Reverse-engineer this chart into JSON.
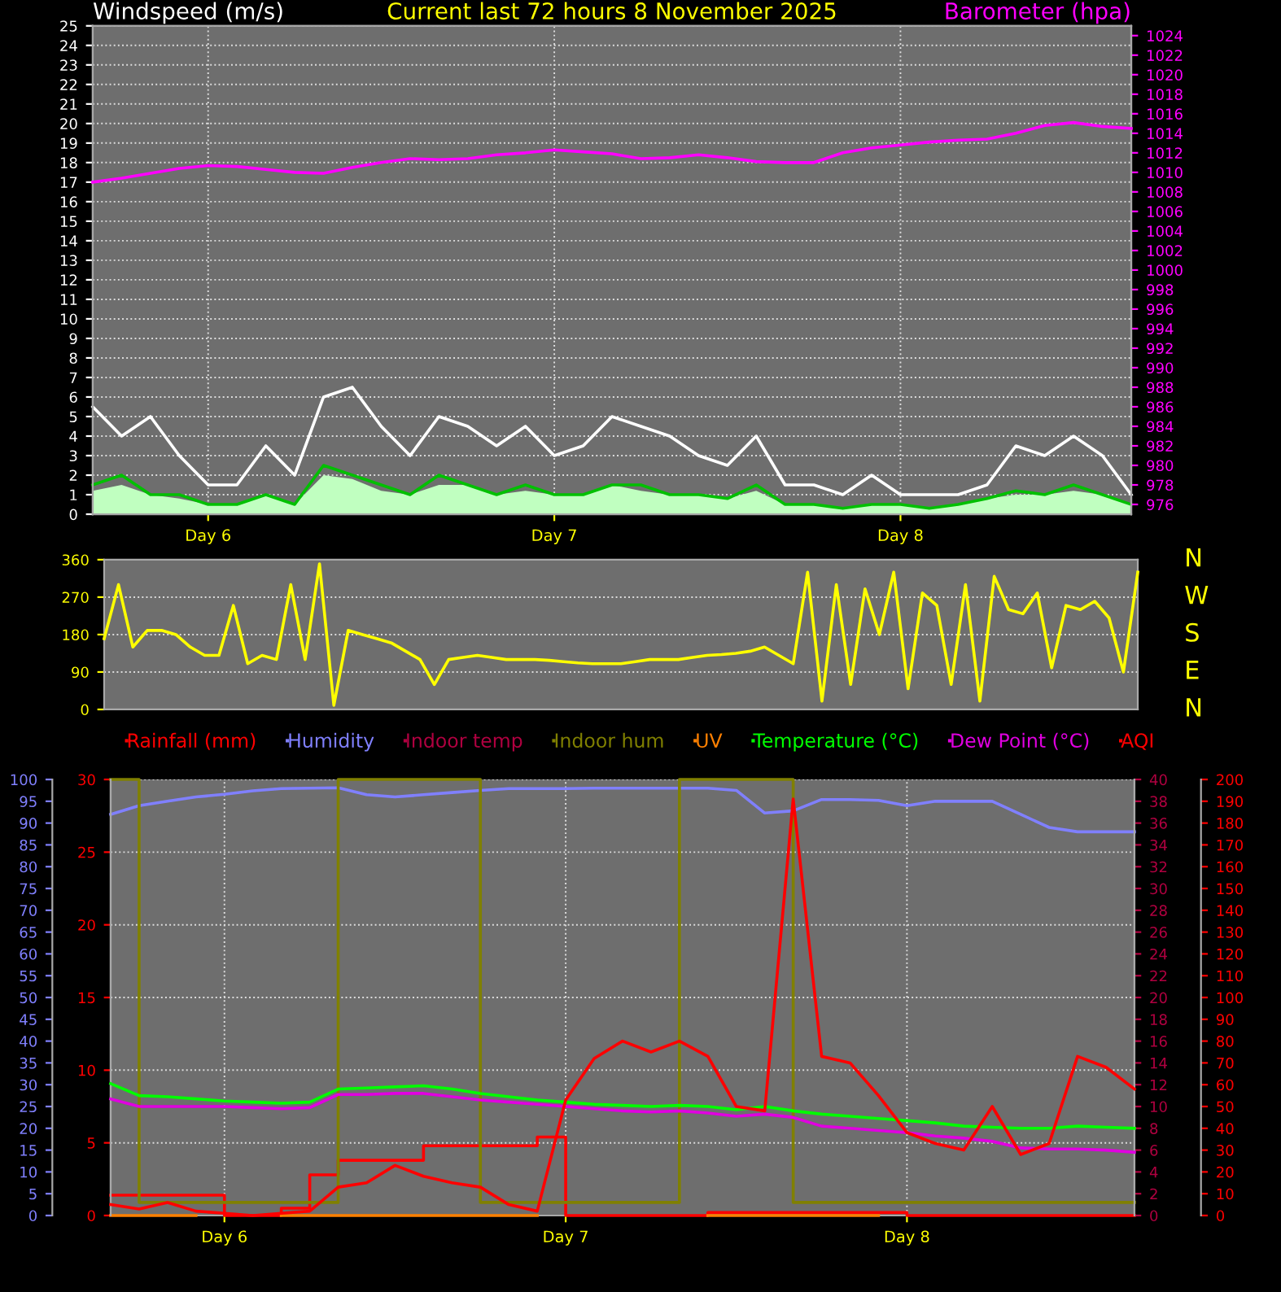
{
  "chart_data": [
    {
      "type": "line",
      "title": "Current last 72 hours 8 November 2025",
      "ylabel": "Windspeed (m/s)",
      "y2label": "Barometer (hpa)",
      "categories": [
        null,
        null,
        null,
        null,
        "Day 6",
        null,
        null,
        null,
        null,
        null,
        null,
        null,
        null,
        null,
        null,
        null,
        "Day 7",
        null,
        null,
        null,
        null,
        null,
        null,
        null,
        null,
        null,
        null,
        null,
        "Day 8",
        null,
        null,
        null,
        null,
        null,
        null,
        null,
        null
      ],
      "ylim": [
        0,
        25
      ],
      "yticks": [
        0,
        1,
        2,
        3,
        4,
        5,
        6,
        7,
        8,
        9,
        10,
        11,
        12,
        13,
        14,
        15,
        16,
        17,
        18,
        19,
        20,
        21,
        22,
        23,
        24,
        25
      ],
      "y2lim": [
        975,
        1025
      ],
      "y2ticks": [
        976,
        978,
        980,
        982,
        984,
        986,
        988,
        990,
        992,
        994,
        996,
        998,
        1000,
        1002,
        1004,
        1006,
        1008,
        1010,
        1012,
        1014,
        1016,
        1018,
        1020,
        1022,
        1024
      ],
      "grid": true,
      "series": [
        {
          "type": "line",
          "color": "#ffffff",
          "values": [
            5.5,
            4,
            5,
            3,
            1.5,
            1.5,
            3.5,
            2,
            6,
            6.5,
            4.5,
            3,
            5,
            4.5,
            3.5,
            4.5,
            3,
            3.5,
            5,
            4.5,
            4,
            3,
            2.5,
            4,
            1.5,
            1.5,
            1,
            2,
            1,
            1,
            1,
            1.5,
            3.5,
            3,
            4,
            3,
            1
          ]
        },
        {
          "type": "area",
          "color": "#c0ffc0",
          "values": [
            1.2,
            1.5,
            1,
            0.8,
            0.5,
            0.5,
            1,
            0.5,
            2,
            1.8,
            1.2,
            1,
            1.5,
            1.5,
            1,
            1.2,
            1,
            1,
            1.5,
            1.2,
            1,
            1,
            0.8,
            1.2,
            0.5,
            0.5,
            0.3,
            0.5,
            0.5,
            0.3,
            0.5,
            0.8,
            1,
            1,
            1.2,
            1,
            0.5
          ]
        },
        {
          "type": "line",
          "color": "#00c000",
          "values": [
            1.5,
            2,
            1,
            1,
            0.5,
            0.5,
            1,
            0.5,
            2.5,
            2,
            1.5,
            1,
            2,
            1.5,
            1,
            1.5,
            1,
            1,
            1.5,
            1.5,
            1,
            1,
            0.8,
            1.5,
            0.5,
            0.5,
            0.3,
            0.5,
            0.5,
            0.3,
            0.5,
            0.8,
            1.2,
            1,
            1.5,
            1,
            0.5
          ]
        },
        {
          "type": "line",
          "color": "#ff00ff",
          "axis": "y2",
          "values": [
            1009.0,
            1009.4,
            1009.9,
            1010.4,
            1010.7,
            1010.6,
            1010.3,
            1010.0,
            1009.9,
            1010.5,
            1011.0,
            1011.4,
            1011.3,
            1011.4,
            1011.8,
            1012.0,
            1012.3,
            1012.1,
            1011.9,
            1011.4,
            1011.5,
            1011.8,
            1011.5,
            1011.1,
            1011.0,
            1011.0,
            1012.0,
            1012.5,
            1012.8,
            1013.1,
            1013.3,
            1013.4,
            1014.0,
            1014.8,
            1015.1,
            1014.7,
            1014.5
          ]
        }
      ]
    },
    {
      "type": "line",
      "ylim": [
        0,
        360
      ],
      "yticks": [
        0,
        90,
        180,
        270,
        360
      ],
      "categories": [
        null,
        null,
        null,
        null,
        null,
        null,
        null,
        null,
        null,
        null,
        null,
        null,
        null,
        null,
        null,
        null,
        null,
        null,
        null,
        null,
        null,
        null,
        null,
        null,
        null,
        null,
        null,
        null,
        null,
        null,
        null,
        null,
        null,
        null,
        null,
        null,
        null,
        null,
        null,
        null,
        null,
        null,
        null,
        null,
        null,
        null,
        null,
        null,
        null,
        null,
        null,
        null,
        null,
        null,
        null,
        null,
        null,
        null,
        null,
        null,
        null,
        null,
        null,
        null,
        null,
        null,
        null,
        null,
        null,
        null,
        null,
        null,
        null
      ],
      "annotations": [
        "N",
        "W",
        "S",
        "E",
        "N"
      ],
      "grid": "y",
      "tick_labels": "y",
      "series": [
        {
          "color": "#ffff00",
          "values": [
            170,
            300,
            150,
            190,
            190,
            180,
            150,
            130,
            130,
            250,
            110,
            130,
            120,
            300,
            120,
            350,
            10,
            190,
            180,
            170,
            160,
            140,
            120,
            60,
            120,
            125,
            130,
            125,
            120,
            120,
            120,
            118,
            115,
            112,
            110,
            110,
            110,
            115,
            120,
            120,
            120,
            125,
            130,
            132,
            135,
            140,
            150,
            130,
            110,
            330,
            20,
            300,
            60,
            290,
            180,
            330,
            50,
            280,
            250,
            60,
            300,
            20,
            320,
            240,
            230,
            280,
            100,
            250,
            240,
            260,
            220,
            90,
            330
          ]
        }
      ]
    },
    {
      "type": "line",
      "legend": "top",
      "categories": [
        null,
        null,
        null,
        null,
        "Day 6",
        null,
        null,
        null,
        null,
        null,
        null,
        null,
        null,
        null,
        null,
        null,
        "Day 7",
        null,
        null,
        null,
        null,
        null,
        null,
        null,
        null,
        null,
        null,
        null,
        "Day 8",
        null,
        null,
        null,
        null,
        null,
        null,
        null,
        null
      ],
      "ylim": [
        0,
        30
      ],
      "yticks": [
        0,
        5,
        10,
        15,
        20,
        25,
        30
      ],
      "y2lim": [
        0,
        100
      ],
      "y2ticks": [
        0,
        5,
        10,
        15,
        20,
        25,
        30,
        35,
        40,
        45,
        50,
        55,
        60,
        65,
        70,
        75,
        80,
        85,
        90,
        95,
        100
      ],
      "y3lim": [
        0,
        40
      ],
      "y3ticks": [
        0,
        2,
        4,
        6,
        8,
        10,
        12,
        14,
        16,
        18,
        20,
        22,
        24,
        26,
        28,
        30,
        32,
        34,
        36,
        38,
        40
      ],
      "grid": true,
      "series": [
        {
          "name": "Rainfall (mm)",
          "type": "step",
          "color": "#ff0000",
          "values": [
            1.4,
            1.4,
            1.4,
            1.4,
            0,
            0,
            0.5,
            2.8,
            3.8,
            3.8,
            3.8,
            4.8,
            4.8,
            4.8,
            4.8,
            5.4,
            0,
            0,
            0,
            0,
            0,
            0.2,
            0.2,
            0.2,
            0.2,
            0.2,
            0.2,
            0.2,
            0,
            0,
            0,
            0,
            0,
            0,
            0,
            0,
            0
          ]
        },
        {
          "name": "Humidity",
          "color": "#8080ff",
          "axis": "y2",
          "values": [
            92,
            94,
            95,
            96,
            96.6,
            97.4,
            97.9,
            98,
            98.1,
            96.5,
            96,
            96.5,
            97,
            97.5,
            97.9,
            97.9,
            97.9,
            98,
            98,
            98,
            98,
            98,
            97.5,
            92.3,
            92.8,
            95.4,
            95.4,
            95.2,
            94,
            95,
            95,
            95,
            92,
            89,
            88,
            88,
            88
          ]
        },
        {
          "name": "Indoor temp",
          "color": "#b00040",
          "axis": "y3",
          "values": [
            null,
            null,
            null,
            null,
            null,
            null,
            null,
            null,
            null,
            null,
            null,
            null,
            null,
            null,
            null,
            null,
            null,
            null,
            null,
            null,
            null,
            null,
            null,
            null,
            null,
            null,
            null,
            null,
            null,
            null,
            null,
            null,
            null,
            null,
            null,
            null,
            null
          ]
        },
        {
          "name": "Indoor hum",
          "type": "step",
          "color": "#808000",
          "axis": "y2",
          "values": [
            100,
            3,
            3,
            3,
            3,
            3,
            3,
            3,
            100,
            100,
            100,
            100,
            100,
            3,
            3,
            3,
            3,
            3,
            3,
            3,
            100,
            100,
            100,
            100,
            3,
            3,
            3,
            3,
            3,
            3,
            3,
            3,
            3,
            3,
            3,
            3,
            3
          ]
        },
        {
          "name": "UV",
          "color": "#ff8000",
          "values": [
            0,
            0,
            0,
            0,
            null,
            null,
            0,
            0,
            0,
            0,
            0,
            0,
            0,
            0,
            0,
            0,
            null,
            null,
            null,
            null,
            null,
            0,
            0,
            0,
            0,
            0,
            0,
            0,
            null,
            null,
            null,
            null,
            null,
            null,
            null,
            null,
            null
          ]
        },
        {
          "name": "Temperature (°C)",
          "color": "#00ff00",
          "axis": "y3",
          "values": [
            12.1,
            11.0,
            10.9,
            10.7,
            10.5,
            10.4,
            10.3,
            10.4,
            11.6,
            11.7,
            11.8,
            11.9,
            11.6,
            11.2,
            10.9,
            10.6,
            10.4,
            10.2,
            10.1,
            10.0,
            10.1,
            10.0,
            9.7,
            10.0,
            9.6,
            9.3,
            9.1,
            8.9,
            8.7,
            8.5,
            8.2,
            8.1,
            8.0,
            8.0,
            8.2,
            8.1,
            8.0
          ]
        },
        {
          "name": "Dew Point (°C)",
          "color": "#e000e0",
          "axis": "y3",
          "values": [
            10.7,
            10.0,
            10.0,
            10.0,
            10.0,
            9.9,
            9.8,
            9.9,
            11.1,
            11.1,
            11.2,
            11.2,
            10.9,
            10.6,
            10.4,
            10.2,
            10.0,
            9.8,
            9.6,
            9.5,
            9.6,
            9.4,
            9.1,
            9.3,
            9.0,
            8.2,
            8.0,
            7.8,
            7.6,
            7.3,
            7.1,
            6.8,
            6.2,
            6.1,
            6.1,
            6.0,
            5.8
          ]
        }
      ]
    },
    {
      "type": "line",
      "legend": "top",
      "tick_labels": "y",
      "categories": [
        null,
        null,
        null,
        null,
        null,
        null,
        null,
        null,
        null,
        null,
        null,
        null,
        null,
        null,
        null,
        null,
        null,
        null,
        null,
        null,
        null,
        null,
        null,
        null,
        null,
        null,
        null,
        null,
        null,
        null,
        null,
        null,
        null,
        null,
        null,
        null,
        null
      ],
      "ylim": [
        0,
        200
      ],
      "yticks": [
        0,
        10,
        20,
        30,
        40,
        50,
        60,
        70,
        80,
        90,
        100,
        110,
        120,
        130,
        140,
        150,
        160,
        170,
        180,
        190,
        200
      ],
      "series": [
        {
          "name": "AQI",
          "color": "#ff0000",
          "values": [
            5,
            3,
            6,
            2,
            1,
            0,
            1,
            2,
            13,
            15,
            23,
            18,
            15,
            13,
            5,
            2,
            53,
            72,
            80,
            75,
            80,
            73,
            50,
            48,
            191,
            73,
            70,
            55,
            38,
            33,
            30,
            50,
            28,
            33,
            73,
            68,
            58
          ]
        }
      ]
    }
  ]
}
